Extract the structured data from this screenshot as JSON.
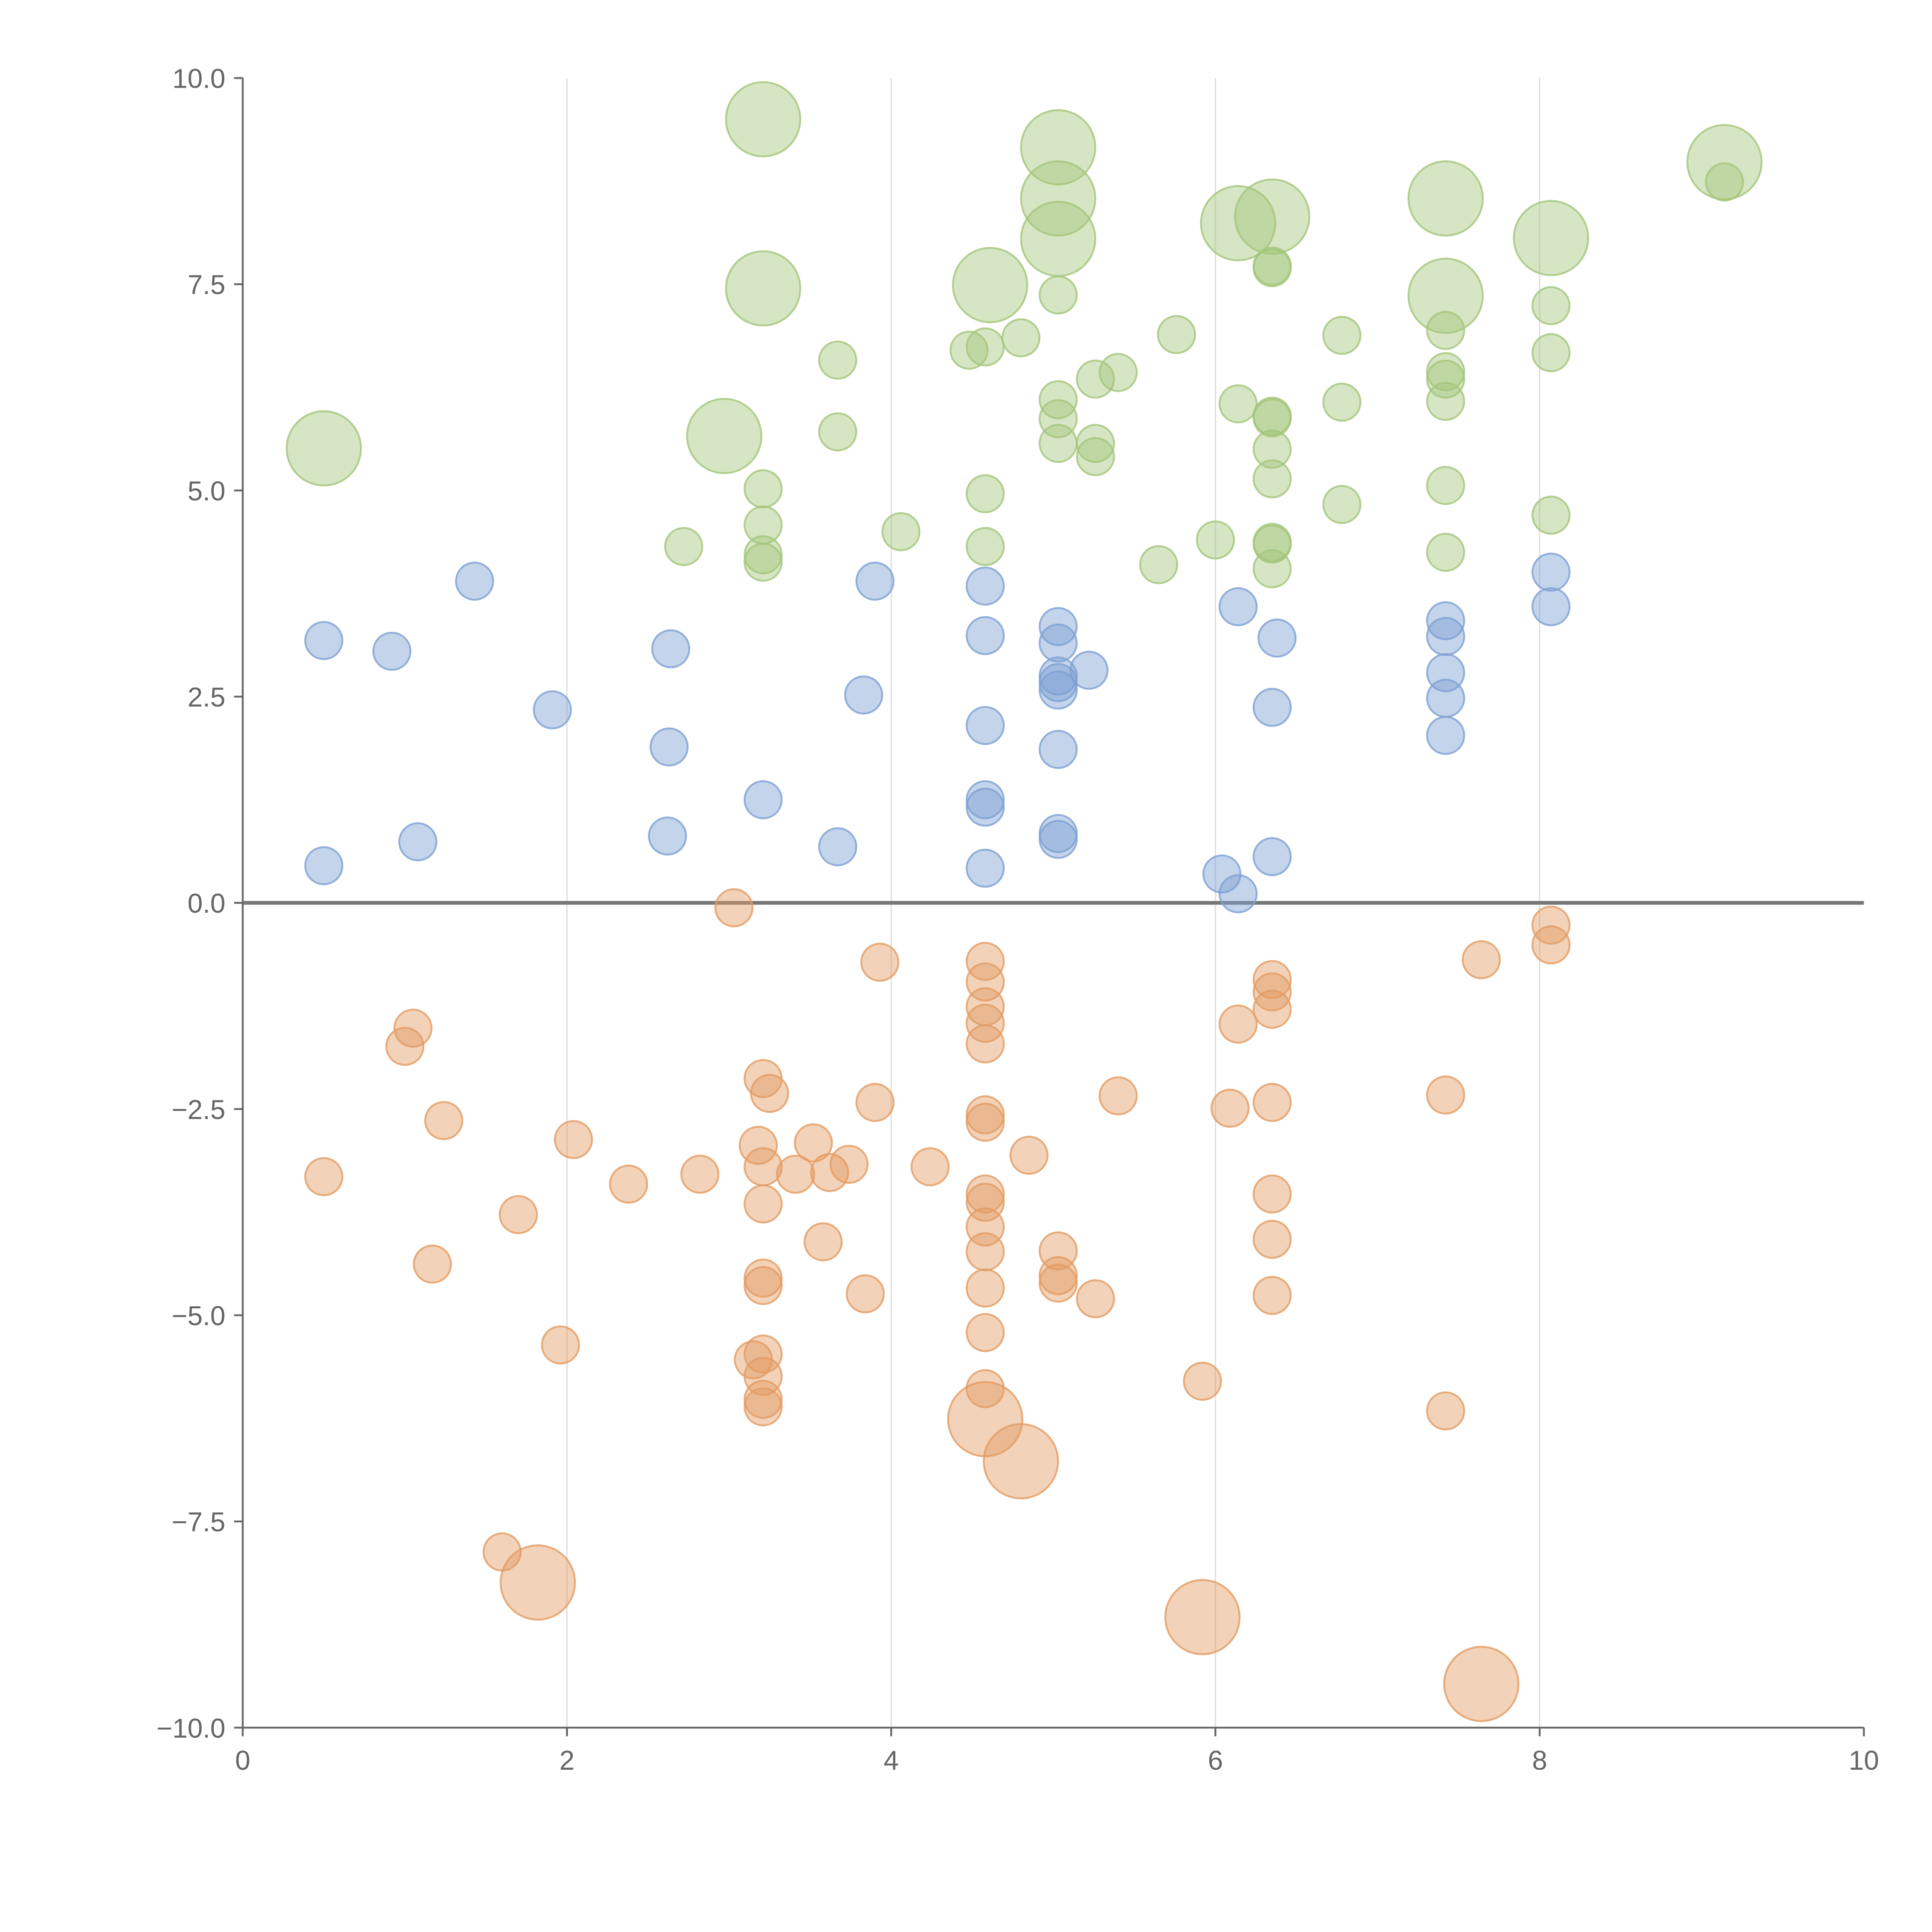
{
  "chart_data": {
    "type": "scatter",
    "title": "",
    "xlabel": "",
    "ylabel": "",
    "xlim": [
      0,
      10
    ],
    "ylim": [
      -10,
      10
    ],
    "grid": "vertical",
    "x_ticks": [
      "0",
      "2",
      "4",
      "6",
      "8",
      "10"
    ],
    "x_tick_values": [
      0,
      2,
      4,
      6,
      8,
      10
    ],
    "y_ticks": [
      "10.0",
      "7.5",
      "5.0",
      "2.5",
      "0.0",
      "−2.5",
      "−5.0",
      "−7.5",
      "−10.0"
    ],
    "y_tick_values": [
      10,
      7.5,
      5,
      2.5,
      0,
      -2.5,
      -5,
      -7.5,
      -10
    ],
    "point_format": [
      "x",
      "y",
      "size"
    ],
    "series": [
      {
        "name": "green",
        "color": "#a3c57a",
        "points": [
          [
            3.21,
            9.5,
            2
          ],
          [
            5.03,
            9.16,
            2
          ],
          [
            5.03,
            8.54,
            2
          ],
          [
            5.03,
            8.05,
            2
          ],
          [
            6.14,
            8.24,
            2
          ],
          [
            6.35,
            8.32,
            2
          ],
          [
            7.42,
            8.54,
            2
          ],
          [
            8.07,
            8.06,
            2
          ],
          [
            9.14,
            8.98,
            2
          ],
          [
            3.21,
            7.45,
            2
          ],
          [
            4.61,
            7.49,
            2
          ],
          [
            7.42,
            7.36,
            2
          ],
          [
            2.97,
            5.66,
            2
          ],
          [
            0.5,
            5.51,
            2
          ],
          [
            9.14,
            8.74,
            1
          ],
          [
            6.35,
            7.72,
            1
          ],
          [
            6.35,
            7.7,
            1
          ],
          [
            5.03,
            7.37,
            1
          ],
          [
            8.07,
            7.24,
            1
          ],
          [
            7.42,
            6.94,
            1
          ],
          [
            5.76,
            6.89,
            1
          ],
          [
            6.78,
            6.88,
            1
          ],
          [
            4.8,
            6.85,
            1
          ],
          [
            4.48,
            6.7,
            1
          ],
          [
            4.58,
            6.74,
            1
          ],
          [
            3.67,
            6.58,
            1
          ],
          [
            8.07,
            6.67,
            1
          ],
          [
            7.42,
            6.44,
            1
          ],
          [
            7.42,
            6.35,
            1
          ],
          [
            5.26,
            6.35,
            1
          ],
          [
            5.4,
            6.43,
            1
          ],
          [
            6.14,
            6.05,
            1
          ],
          [
            6.78,
            6.07,
            1
          ],
          [
            7.42,
            6.08,
            1
          ],
          [
            5.03,
            6.1,
            1
          ],
          [
            5.03,
            5.87,
            1
          ],
          [
            6.35,
            5.9,
            1
          ],
          [
            6.35,
            5.88,
            1
          ],
          [
            3.67,
            5.71,
            1
          ],
          [
            5.03,
            5.57,
            1
          ],
          [
            5.26,
            5.57,
            1
          ],
          [
            5.26,
            5.41,
            1
          ],
          [
            6.35,
            5.5,
            1
          ],
          [
            6.35,
            5.14,
            1
          ],
          [
            7.42,
            5.06,
            1
          ],
          [
            3.21,
            5.02,
            1
          ],
          [
            4.58,
            4.96,
            1
          ],
          [
            6.78,
            4.83,
            1
          ],
          [
            8.07,
            4.7,
            1
          ],
          [
            3.21,
            4.58,
            1
          ],
          [
            4.06,
            4.5,
            1
          ],
          [
            6.0,
            4.4,
            1
          ],
          [
            6.35,
            4.37,
            1
          ],
          [
            6.35,
            4.35,
            1
          ],
          [
            2.72,
            4.32,
            1
          ],
          [
            4.58,
            4.32,
            1
          ],
          [
            7.42,
            4.25,
            1
          ],
          [
            3.21,
            4.22,
            1
          ],
          [
            3.21,
            4.13,
            1
          ],
          [
            6.35,
            4.05,
            1
          ],
          [
            5.65,
            4.1,
            1
          ]
        ]
      },
      {
        "name": "blue",
        "color": "#7da0d3",
        "points": [
          [
            1.43,
            3.9,
            1
          ],
          [
            3.9,
            3.9,
            1
          ],
          [
            4.58,
            3.84,
            1
          ],
          [
            8.07,
            4.01,
            1
          ],
          [
            8.07,
            3.59,
            1
          ],
          [
            6.14,
            3.59,
            1
          ],
          [
            7.42,
            3.42,
            1
          ],
          [
            5.03,
            3.35,
            1
          ],
          [
            0.5,
            3.18,
            1
          ],
          [
            4.58,
            3.24,
            1
          ],
          [
            6.38,
            3.21,
            1
          ],
          [
            7.42,
            3.23,
            1
          ],
          [
            0.92,
            3.05,
            1
          ],
          [
            2.64,
            3.08,
            1
          ],
          [
            5.03,
            3.15,
            1
          ],
          [
            5.22,
            2.82,
            1
          ],
          [
            7.42,
            2.79,
            1
          ],
          [
            5.03,
            2.75,
            1
          ],
          [
            5.03,
            2.67,
            1
          ],
          [
            5.03,
            2.58,
            1
          ],
          [
            3.83,
            2.52,
            1
          ],
          [
            7.42,
            2.48,
            1
          ],
          [
            1.91,
            2.34,
            1
          ],
          [
            6.35,
            2.37,
            1
          ],
          [
            4.58,
            2.15,
            1
          ],
          [
            7.42,
            2.03,
            1
          ],
          [
            2.63,
            1.89,
            1
          ],
          [
            5.03,
            1.86,
            1
          ],
          [
            3.21,
            1.25,
            1
          ],
          [
            4.58,
            1.25,
            1
          ],
          [
            4.58,
            1.16,
            1
          ],
          [
            2.62,
            0.81,
            1
          ],
          [
            5.03,
            0.84,
            1
          ],
          [
            5.03,
            0.77,
            1
          ],
          [
            1.08,
            0.74,
            1
          ],
          [
            3.67,
            0.68,
            1
          ],
          [
            6.35,
            0.56,
            1
          ],
          [
            0.5,
            0.45,
            1
          ],
          [
            4.58,
            0.42,
            1
          ],
          [
            6.04,
            0.35,
            1
          ],
          [
            6.14,
            0.11,
            1
          ]
        ]
      },
      {
        "name": "orange",
        "color": "#e39b62",
        "points": [
          [
            3.03,
            -0.06,
            1
          ],
          [
            8.07,
            -0.27,
            1
          ],
          [
            8.07,
            -0.51,
            1
          ],
          [
            3.93,
            -0.72,
            1
          ],
          [
            4.58,
            -0.71,
            1
          ],
          [
            7.64,
            -0.69,
            1
          ],
          [
            4.58,
            -0.96,
            1
          ],
          [
            6.35,
            -0.93,
            1
          ],
          [
            6.35,
            -1.08,
            1
          ],
          [
            6.35,
            -1.29,
            1
          ],
          [
            4.58,
            -1.26,
            1
          ],
          [
            4.58,
            -1.46,
            1
          ],
          [
            6.14,
            -1.47,
            1
          ],
          [
            1.05,
            -1.52,
            1
          ],
          [
            1.0,
            -1.74,
            1
          ],
          [
            4.58,
            -1.71,
            1
          ],
          [
            3.21,
            -2.13,
            1
          ],
          [
            3.25,
            -2.31,
            1
          ],
          [
            7.42,
            -2.33,
            1
          ],
          [
            5.4,
            -2.34,
            1
          ],
          [
            3.9,
            -2.42,
            1
          ],
          [
            6.35,
            -2.42,
            1
          ],
          [
            6.09,
            -2.49,
            1
          ],
          [
            4.58,
            -2.57,
            1
          ],
          [
            4.58,
            -2.66,
            1
          ],
          [
            1.24,
            -2.64,
            1
          ],
          [
            2.04,
            -2.87,
            1
          ],
          [
            3.52,
            -2.91,
            1
          ],
          [
            3.18,
            -2.94,
            1
          ],
          [
            4.85,
            -3.06,
            1
          ],
          [
            3.74,
            -3.17,
            1
          ],
          [
            3.21,
            -3.2,
            1
          ],
          [
            4.24,
            -3.2,
            1
          ],
          [
            3.41,
            -3.29,
            1
          ],
          [
            3.62,
            -3.27,
            1
          ],
          [
            0.5,
            -3.32,
            1
          ],
          [
            2.82,
            -3.29,
            1
          ],
          [
            2.38,
            -3.41,
            1
          ],
          [
            6.35,
            -3.53,
            1
          ],
          [
            4.58,
            -3.53,
            1
          ],
          [
            4.58,
            -3.63,
            1
          ],
          [
            3.21,
            -3.65,
            1
          ],
          [
            1.7,
            -3.78,
            1
          ],
          [
            4.58,
            -3.93,
            1
          ],
          [
            6.35,
            -4.08,
            1
          ],
          [
            3.58,
            -4.11,
            1
          ],
          [
            5.03,
            -4.22,
            1
          ],
          [
            4.58,
            -4.23,
            1
          ],
          [
            1.17,
            -4.38,
            1
          ],
          [
            5.03,
            -4.52,
            1
          ],
          [
            5.03,
            -4.61,
            1
          ],
          [
            3.21,
            -4.55,
            1
          ],
          [
            3.21,
            -4.64,
            1
          ],
          [
            4.58,
            -4.67,
            1
          ],
          [
            3.84,
            -4.74,
            1
          ],
          [
            6.35,
            -4.76,
            1
          ],
          [
            5.26,
            -4.8,
            1
          ],
          [
            4.58,
            -5.21,
            1
          ],
          [
            1.96,
            -5.36,
            1
          ],
          [
            3.21,
            -5.47,
            1
          ],
          [
            3.15,
            -5.54,
            1
          ],
          [
            3.21,
            -5.74,
            1
          ],
          [
            5.92,
            -5.8,
            1
          ],
          [
            4.58,
            -5.89,
            1
          ],
          [
            3.21,
            -6.02,
            1
          ],
          [
            3.21,
            -6.11,
            1
          ],
          [
            7.42,
            -6.16,
            1
          ],
          [
            1.6,
            -7.87,
            1
          ],
          [
            4.58,
            -6.26,
            2
          ],
          [
            4.8,
            -6.77,
            2
          ],
          [
            1.82,
            -8.24,
            2
          ],
          [
            5.92,
            -8.66,
            2
          ],
          [
            7.64,
            -9.47,
            2
          ]
        ]
      }
    ]
  }
}
